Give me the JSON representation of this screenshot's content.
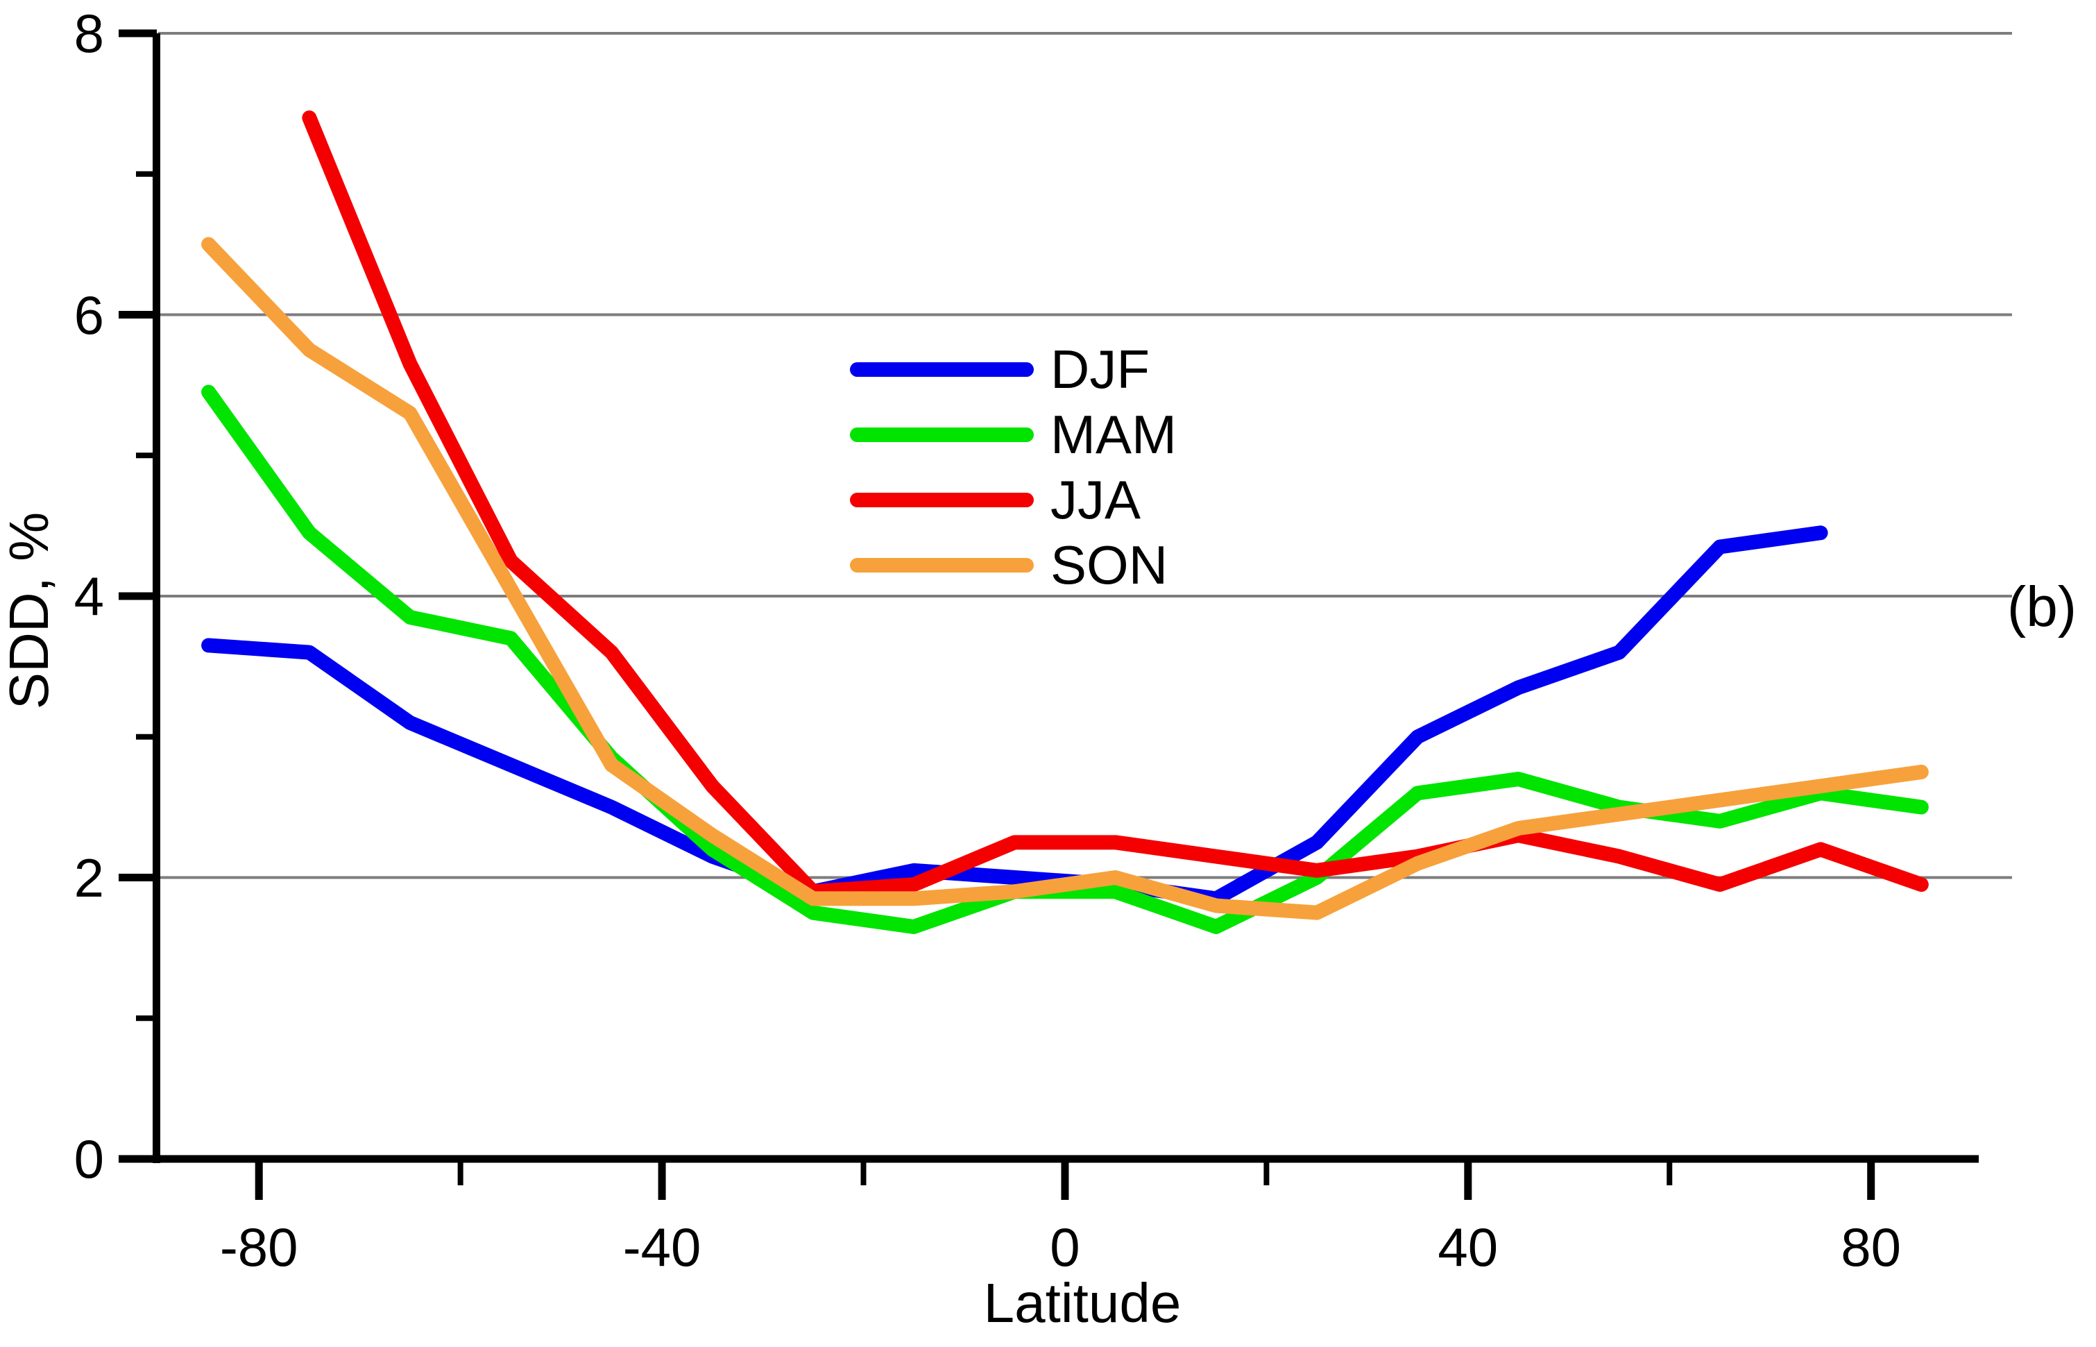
{
  "figure": {
    "annotation": "(b)",
    "background_color": "#ffffff"
  },
  "chart_data": {
    "type": "line",
    "title": "",
    "xlabel": "Latitude",
    "ylabel": "SDD, %",
    "xlim": [
      -90,
      94
    ],
    "ylim": [
      0,
      8
    ],
    "x_major_ticks": [
      -80,
      -40,
      0,
      40,
      80
    ],
    "x_minor_ticks": [
      -60,
      -20,
      20,
      60
    ],
    "y_major_ticks": [
      0,
      2,
      4,
      6,
      8
    ],
    "y_minor_ticks": [
      1,
      3,
      5,
      7
    ],
    "gridlines_at": [
      2,
      4,
      6,
      8
    ],
    "grid_on": true,
    "grid_color": "#7d7d7d",
    "axis_color": "#000000",
    "legend_position": "upper-center",
    "x": [
      -85,
      -75,
      -65,
      -55,
      -45,
      -35,
      -25,
      -15,
      -5,
      5,
      15,
      25,
      35,
      45,
      55,
      65,
      75,
      85
    ],
    "series": [
      {
        "name": "DJF",
        "color": "#0000f0",
        "values": [
          3.65,
          3.6,
          3.1,
          2.8,
          2.5,
          2.15,
          1.9,
          2.05,
          2.0,
          1.95,
          1.85,
          2.25,
          3.0,
          3.35,
          3.6,
          4.35,
          4.45,
          null
        ]
      },
      {
        "name": "MAM",
        "color": "#00e400",
        "values": [
          5.45,
          4.45,
          3.85,
          3.7,
          2.85,
          2.2,
          1.75,
          1.65,
          1.9,
          1.9,
          1.65,
          2.0,
          2.6,
          2.7,
          2.5,
          2.4,
          2.6,
          2.5
        ]
      },
      {
        "name": "JJA",
        "color": "#f50000",
        "values": [
          null,
          7.4,
          5.65,
          4.25,
          3.6,
          2.65,
          1.9,
          1.95,
          2.25,
          2.25,
          2.15,
          2.05,
          2.15,
          2.3,
          2.15,
          1.95,
          2.2,
          1.95
        ]
      },
      {
        "name": "SON",
        "color": "#f7a13c",
        "values": [
          6.5,
          5.75,
          5.3,
          4.05,
          2.8,
          2.3,
          1.85,
          1.85,
          1.9,
          2.0,
          1.8,
          1.75,
          2.1,
          2.35,
          2.45,
          2.55,
          2.65,
          2.75
        ]
      }
    ]
  }
}
